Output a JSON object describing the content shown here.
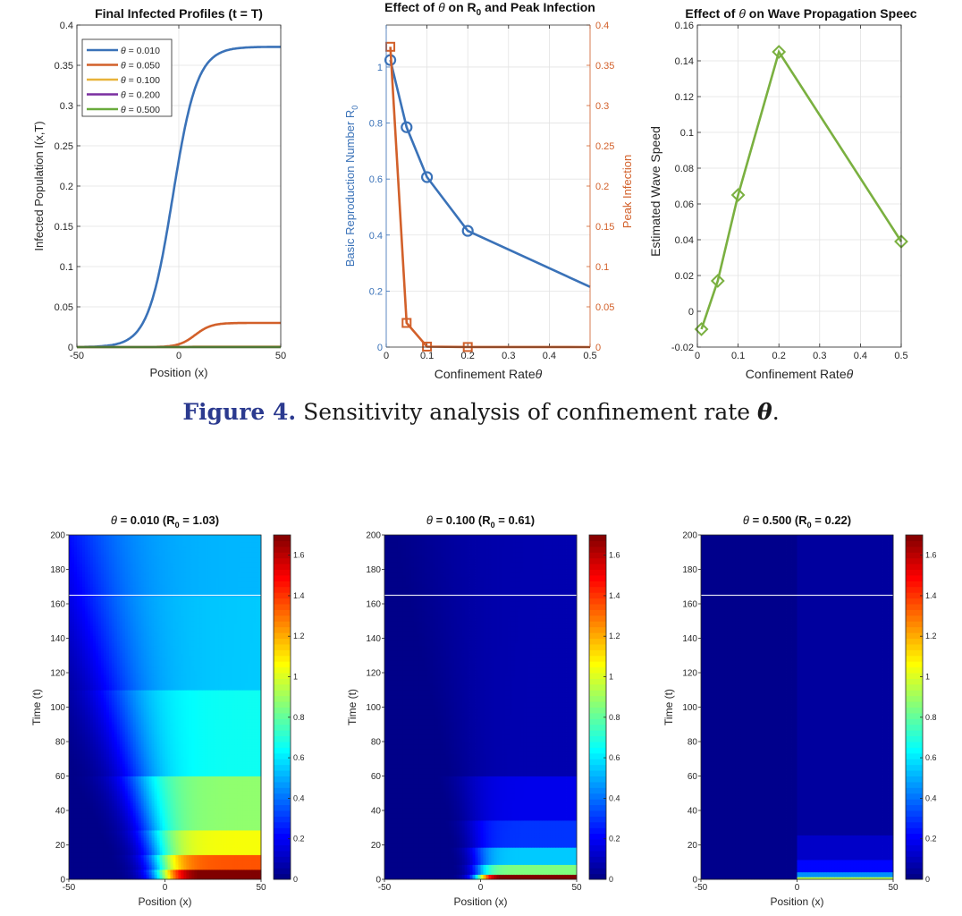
{
  "figure_caption": {
    "label": "Figure 4.",
    "text_before": "Sensitivity analysis of confinement rate",
    "symbol": "θ",
    "text_after": "."
  },
  "colors": {
    "blue": "#3a72b8",
    "orange": "#d2602a",
    "yellow": "#e8b33a",
    "purple": "#7a2ea0",
    "green": "#6aab3d",
    "speed_green": "#7ab040"
  },
  "chart_data": [
    {
      "type": "line",
      "title": "Final Infected Profiles (t = T)",
      "xlabel": "Position (x)",
      "ylabel": "Infected Population I(x,T)",
      "xlim": [
        -50,
        50
      ],
      "ylim": [
        0,
        0.4
      ],
      "xticks": [
        -50,
        0,
        50
      ],
      "xtick_labels": [
        "-50",
        "0",
        "50"
      ],
      "yticks": [
        0,
        0.05,
        0.1,
        0.15,
        0.2,
        0.25,
        0.3,
        0.35,
        0.4
      ],
      "ytick_labels": [
        "0",
        "0.05",
        "0.1",
        "0.15",
        "0.2",
        "0.25",
        "0.3",
        "0.35",
        "0.4"
      ],
      "grid": true,
      "legend_position": "top-left",
      "legend_symbol": "θ",
      "series": [
        {
          "name": "= 0.010",
          "color": "#3a72b8",
          "profile": "sigmoid",
          "max": 0.373,
          "center": -3,
          "width": 6
        },
        {
          "name": "= 0.050",
          "color": "#d2602a",
          "profile": "sigmoid",
          "max": 0.03,
          "center": 8,
          "width": 4
        },
        {
          "name": "= 0.100",
          "color": "#e8b33a",
          "profile": "sigmoid",
          "max": 0.0006,
          "center": 5,
          "width": 3
        },
        {
          "name": "= 0.200",
          "color": "#7a2ea0",
          "profile": "sigmoid",
          "max": 0.0001,
          "center": 5,
          "width": 3
        },
        {
          "name": "= 0.500",
          "color": "#6aab3d",
          "profile": "sigmoid",
          "max": 2e-05,
          "center": 5,
          "width": 3
        }
      ]
    },
    {
      "type": "line",
      "title": "Effect of θ on R0 and Peak Infection",
      "title_parts": {
        "before": "Effect of ",
        "symbol": "θ",
        "middle": " on R",
        "sub": "0",
        "after": " and Peak Infection"
      },
      "xlabel": "Confinement Rate",
      "xlabel_symbol": "θ",
      "ylabel_left": "Basic Reproduction Number R",
      "ylabel_left_sub": "0",
      "ylabel_right": "Peak Infection",
      "xlim": [
        0,
        0.5
      ],
      "ylim_left": [
        0,
        1.15
      ],
      "ylim_right": [
        0,
        0.4
      ],
      "xticks": [
        0,
        0.1,
        0.2,
        0.3,
        0.4,
        0.5
      ],
      "xtick_labels": [
        "0",
        "0.1",
        "0.2",
        "0.3",
        "0.4",
        "0.5"
      ],
      "yticks_left": [
        0,
        0.2,
        0.4,
        0.6,
        0.8,
        1
      ],
      "ytick_labels_left": [
        "0",
        "0.2",
        "0.4",
        "0.6",
        "0.8",
        "1"
      ],
      "yticks_right": [
        0,
        0.05,
        0.1,
        0.15,
        0.2,
        0.25,
        0.3,
        0.35,
        0.4
      ],
      "ytick_labels_right": [
        "0",
        "0.05",
        "0.1",
        "0.15",
        "0.2",
        "0.25",
        "0.3",
        "0.35",
        "0.4"
      ],
      "grid": true,
      "series": [
        {
          "name": "R0",
          "axis": "left",
          "color": "#3a72b8",
          "marker": "circle",
          "x": [
            0.01,
            0.05,
            0.1,
            0.2,
            0.5
          ],
          "y": [
            1.025,
            0.785,
            0.607,
            0.415,
            0.215
          ],
          "marked": [
            true,
            true,
            true,
            true,
            false
          ]
        },
        {
          "name": "Peak Infection",
          "axis": "right",
          "color": "#d2602a",
          "marker": "square",
          "x": [
            0.01,
            0.05,
            0.1,
            0.2,
            0.5
          ],
          "y": [
            0.373,
            0.03,
            0.0006,
            0.0001,
            0.0
          ],
          "marked": [
            true,
            true,
            true,
            true,
            false
          ]
        }
      ]
    },
    {
      "type": "line",
      "title": "Effect of θ on Wave Propagation Speed",
      "title_parts": {
        "before": "Effect of ",
        "symbol": "θ",
        "after": " on Wave Propagation Speec"
      },
      "xlabel": "Confinement Rate",
      "xlabel_symbol": "θ",
      "ylabel": "Estimated Wave Speed",
      "xlim": [
        0,
        0.5
      ],
      "ylim": [
        -0.02,
        0.16
      ],
      "xticks": [
        0,
        0.1,
        0.2,
        0.3,
        0.4,
        0.5
      ],
      "xtick_labels": [
        "0",
        "0.1",
        "0.2",
        "0.3",
        "0.4",
        "0.5"
      ],
      "yticks": [
        -0.02,
        0,
        0.02,
        0.04,
        0.06,
        0.08,
        0.1,
        0.12,
        0.14,
        0.16
      ],
      "ytick_labels": [
        "-0.02",
        "0",
        "0.02",
        "0.04",
        "0.06",
        "0.08",
        "0.1",
        "0.12",
        "0.14",
        "0.16"
      ],
      "grid": true,
      "series": [
        {
          "name": "Wave Speed",
          "color": "#7ab040",
          "marker": "diamond",
          "x": [
            0.01,
            0.05,
            0.1,
            0.2,
            0.5
          ],
          "y": [
            -0.01,
            0.017,
            0.065,
            0.145,
            0.039
          ]
        }
      ]
    },
    {
      "type": "heatmap",
      "title_parts": {
        "symbol": "θ",
        "before": " = 0.010 (R",
        "sub": "0",
        "after": " = 1.03)"
      },
      "xlabel": "Position (x)",
      "ylabel": "Time (t)",
      "xlim": [
        -50,
        50
      ],
      "ylim": [
        0,
        200
      ],
      "xticks": [
        -50,
        0,
        50
      ],
      "xtick_labels": [
        "-50",
        "0",
        "50"
      ],
      "yticks": [
        0,
        20,
        40,
        60,
        80,
        100,
        120,
        140,
        160,
        180,
        200
      ],
      "ytick_labels": [
        "0",
        "20",
        "40",
        "60",
        "80",
        "100",
        "120",
        "140",
        "160",
        "180",
        "200"
      ],
      "colorbar_range": [
        0,
        1.7
      ],
      "colorbar_ticks": [
        0,
        0.2,
        0.4,
        0.6,
        0.8,
        1,
        1.2,
        1.4,
        1.6
      ],
      "colorbar_tick_labels": [
        "0",
        "0.2",
        "0.4",
        "0.6",
        "0.8",
        "1",
        "1.2",
        "1.4",
        "1.6"
      ],
      "marker_line_t": 165,
      "field": {
        "kind": "spread",
        "front": 0,
        "edge_width": 5,
        "spread_rate": 0.23,
        "layers": [
          [
            0,
            6,
            1.75
          ],
          [
            6,
            14,
            1.35
          ],
          [
            14,
            28,
            1.05
          ],
          [
            28,
            60,
            0.88
          ],
          [
            60,
            110,
            0.66
          ],
          [
            110,
            165,
            0.55
          ],
          [
            165,
            200,
            0.52
          ]
        ]
      }
    },
    {
      "type": "heatmap",
      "title_parts": {
        "symbol": "θ",
        "before": " = 0.100 (R",
        "sub": "0",
        "after": " = 0.61)"
      },
      "xlabel": "Position (x)",
      "ylabel": "Time (t)",
      "xlim": [
        -50,
        50
      ],
      "ylim": [
        0,
        200
      ],
      "xticks": [
        -50,
        0,
        50
      ],
      "xtick_labels": [
        "-50",
        "0",
        "50"
      ],
      "yticks": [
        0,
        20,
        40,
        60,
        80,
        100,
        120,
        140,
        160,
        180,
        200
      ],
      "ytick_labels": [
        "0",
        "20",
        "40",
        "60",
        "80",
        "100",
        "120",
        "140",
        "160",
        "180",
        "200"
      ],
      "colorbar_range": [
        0,
        1.7
      ],
      "colorbar_ticks": [
        0,
        0.2,
        0.4,
        0.6,
        0.8,
        1,
        1.2,
        1.4,
        1.6
      ],
      "colorbar_tick_labels": [
        "0",
        "0.2",
        "0.4",
        "0.6",
        "0.8",
        "1",
        "1.2",
        "1.4",
        "1.6"
      ],
      "marker_line_t": 165,
      "field": {
        "kind": "spread",
        "front": 0,
        "edge_width": 3,
        "spread_rate": 0.12,
        "layers": [
          [
            0,
            3,
            1.75
          ],
          [
            3,
            8,
            0.85
          ],
          [
            8,
            18,
            0.55
          ],
          [
            18,
            35,
            0.3
          ],
          [
            35,
            60,
            0.18
          ],
          [
            60,
            200,
            0.08
          ]
        ]
      }
    },
    {
      "type": "heatmap",
      "title_parts": {
        "symbol": "θ",
        "before": " = 0.500 (R",
        "sub": "0",
        "after": " = 0.22)"
      },
      "xlabel": "Position (x)",
      "ylabel": "Time (t)",
      "xlim": [
        -50,
        50
      ],
      "ylim": [
        0,
        200
      ],
      "xticks": [
        -50,
        0,
        50
      ],
      "xtick_labels": [
        "-50",
        "0",
        "50"
      ],
      "yticks": [
        0,
        20,
        40,
        60,
        80,
        100,
        120,
        140,
        160,
        180,
        200
      ],
      "ytick_labels": [
        "0",
        "20",
        "40",
        "60",
        "80",
        "100",
        "120",
        "140",
        "160",
        "180",
        "200"
      ],
      "colorbar_range": [
        0,
        1.7
      ],
      "colorbar_ticks": [
        0,
        0.2,
        0.4,
        0.6,
        0.8,
        1,
        1.2,
        1.4,
        1.6
      ],
      "colorbar_tick_labels": [
        "0",
        "0.2",
        "0.4",
        "0.6",
        "0.8",
        "1",
        "1.2",
        "1.4",
        "1.6"
      ],
      "marker_line_t": 165,
      "field": {
        "kind": "step",
        "front": 0,
        "edge_width": 0,
        "spread_rate": 0,
        "layers": [
          [
            0,
            2,
            0.95
          ],
          [
            2,
            5,
            0.45
          ],
          [
            5,
            11,
            0.22
          ],
          [
            11,
            26,
            0.12
          ],
          [
            26,
            200,
            0.05
          ]
        ]
      }
    }
  ]
}
